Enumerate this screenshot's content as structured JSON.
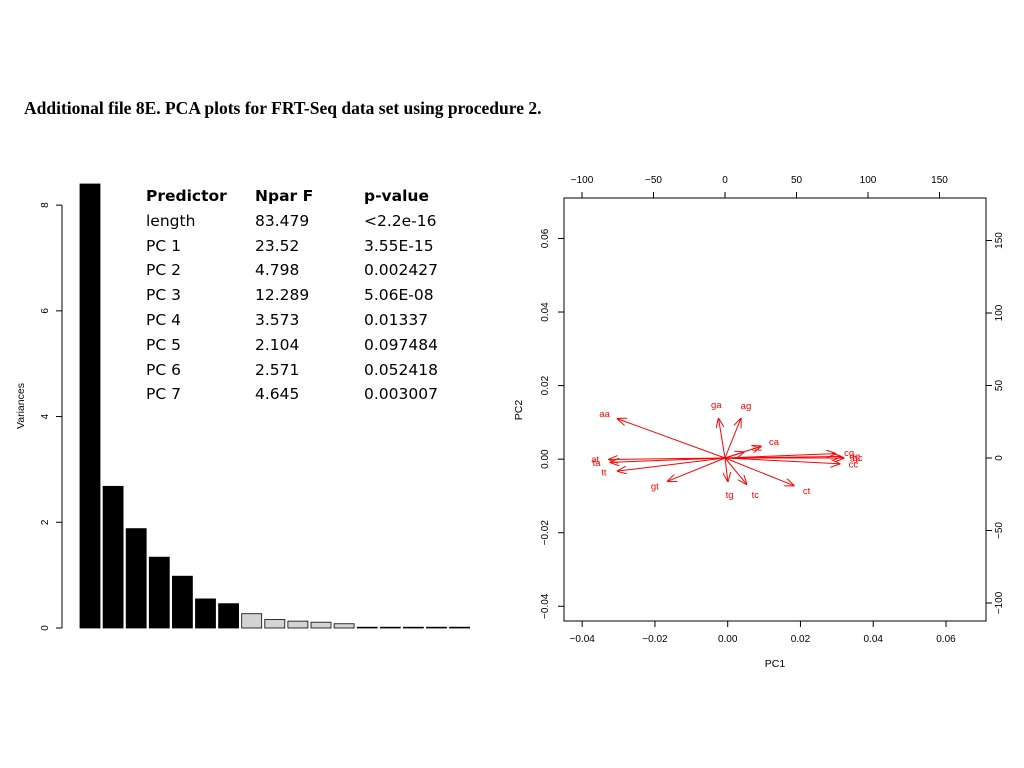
{
  "caption": "Additional file 8E. PCA plots for FRT-Seq data set using procedure 2.",
  "table": {
    "headers": [
      "Predictor",
      "Npar F",
      "p-value"
    ],
    "rows": [
      [
        "length",
        "83.479",
        "<2.2e-16"
      ],
      [
        "PC 1",
        "23.52",
        "3.55E-15"
      ],
      [
        "PC 2",
        "4.798",
        "0.002427"
      ],
      [
        "PC 3",
        "12.289",
        "5.06E-08"
      ],
      [
        "PC 4",
        "3.573",
        "0.01337"
      ],
      [
        "PC 5",
        "2.104",
        "0.097484"
      ],
      [
        "PC 6",
        "2.571",
        "0.052418"
      ],
      [
        "PC 7",
        "4.645",
        "0.003007"
      ]
    ]
  },
  "chart_data": [
    {
      "type": "bar",
      "ylabel": "Variances",
      "ylim": [
        0,
        8.4
      ],
      "yticks": [
        0,
        2,
        4,
        6,
        8
      ],
      "values": [
        8.4,
        2.68,
        1.88,
        1.34,
        0.98,
        0.55,
        0.46,
        0.27,
        0.16,
        0.13,
        0.11,
        0.08,
        0.01,
        0.005,
        0.004,
        0.003,
        0.002
      ],
      "bar_colors": [
        "#000000",
        "#000000",
        "#000000",
        "#000000",
        "#000000",
        "#000000",
        "#000000",
        "#d3d3d3",
        "#d3d3d3",
        "#d3d3d3",
        "#d3d3d3",
        "#d3d3d3",
        "#d3d3d3",
        "#d3d3d3",
        "#d3d3d3",
        "#d3d3d3",
        "#d3d3d3"
      ]
    },
    {
      "type": "biplot",
      "xlabel": "PC1",
      "ylabel": "PC2",
      "xlim": [
        -0.045,
        0.071
      ],
      "ylim": [
        -0.044,
        0.071
      ],
      "xticks": [
        -0.04,
        -0.02,
        0.0,
        0.02,
        0.04,
        0.06
      ],
      "xtick_labels": [
        "-0.04",
        "-0.02",
        "0.00",
        "0.02",
        "0.04",
        "0.06"
      ],
      "yticks": [
        -0.04,
        -0.02,
        0.0,
        0.02,
        0.04,
        0.06
      ],
      "ytick_labels": [
        "-0.04",
        "-0.02",
        "0.00",
        "0.02",
        "0.04",
        "0.06"
      ],
      "top_ticks": [
        -100,
        -50,
        0,
        50,
        100,
        150
      ],
      "right_ticks": [
        -100,
        -50,
        0,
        50,
        100,
        150
      ],
      "arrow_color": "#ff0000",
      "loadings": [
        {
          "label": "ga",
          "x": -4.5,
          "y": 27
        },
        {
          "label": "ag",
          "x": 11,
          "y": 27
        },
        {
          "label": "aa",
          "x": -75,
          "y": 27
        },
        {
          "label": "ca",
          "x": 25,
          "y": 8
        },
        {
          "label": "ac",
          "x": 13,
          "y": 4
        },
        {
          "label": "cg",
          "x": 77,
          "y": 3
        },
        {
          "label": "gg",
          "x": 81,
          "y": 1
        },
        {
          "label": "gc",
          "x": 83,
          "y": 0
        },
        {
          "label": "cc",
          "x": 80,
          "y": -4
        },
        {
          "label": "at",
          "x": -81,
          "y": -1
        },
        {
          "label": "ta",
          "x": -80,
          "y": -3
        },
        {
          "label": "tt",
          "x": -75,
          "y": -9
        },
        {
          "label": "gt",
          "x": -40,
          "y": -16
        },
        {
          "label": "tg",
          "x": 2,
          "y": -16
        },
        {
          "label": "tc",
          "x": 15,
          "y": -18
        },
        {
          "label": "ct",
          "x": 48,
          "y": -19
        }
      ]
    }
  ]
}
